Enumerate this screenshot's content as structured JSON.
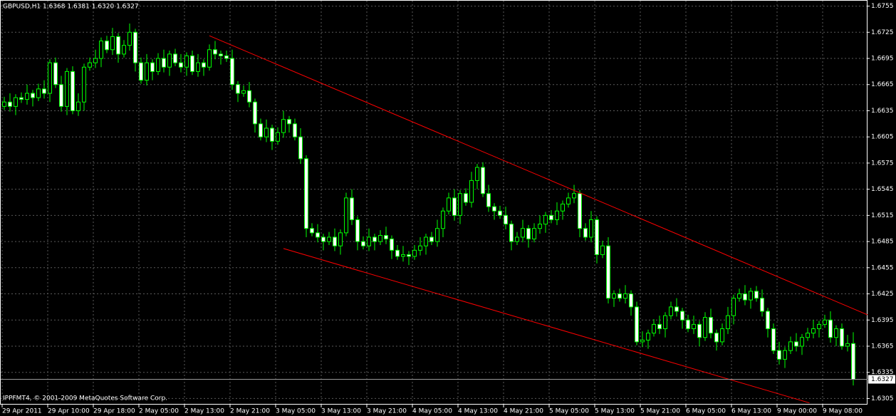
{
  "chart_data": {
    "type": "candlestick",
    "title": "GBPUSD,H1  1.6368 1.6381 1.6320 1.6327",
    "footer": "IPPFMT4, © 2001-2009 MetaQuotes Software Corp.",
    "line_color": "#00ff00",
    "up_color": "#000000",
    "down_color": "#ffffff",
    "grid": true,
    "categories": [
      "29 Apr 2011",
      null,
      null,
      null,
      null,
      null,
      null,
      null,
      "29 Apr 10:00",
      null,
      null,
      null,
      null,
      null,
      null,
      null,
      "29 Apr 18:00",
      null,
      null,
      null,
      null,
      null,
      null,
      null,
      "2 May 05:00",
      null,
      null,
      null,
      null,
      null,
      null,
      null,
      "2 May 13:00",
      null,
      null,
      null,
      null,
      null,
      null,
      null,
      "2 May 21:00",
      null,
      null,
      null,
      null,
      null,
      null,
      null,
      "3 May 05:00",
      null,
      null,
      null,
      null,
      null,
      null,
      null,
      "3 May 13:00",
      null,
      null,
      null,
      null,
      null,
      null,
      null,
      "3 May 21:00",
      null,
      null,
      null,
      null,
      null,
      null,
      null,
      "4 May 05:00",
      null,
      null,
      null,
      null,
      null,
      null,
      null,
      "4 May 13:00",
      null,
      null,
      null,
      null,
      null,
      null,
      null,
      "4 May 21:00",
      null,
      null,
      null,
      null,
      null,
      null,
      null,
      "5 May 05:00",
      null,
      null,
      null,
      null,
      null,
      null,
      null,
      "5 May 13:00",
      null,
      null,
      null,
      null,
      null,
      null,
      null,
      "5 May 21:00",
      null,
      null,
      null,
      null,
      null,
      null,
      null,
      "6 May 05:00",
      null,
      null,
      null,
      null,
      null,
      null,
      null,
      "6 May 13:00",
      null,
      null,
      null,
      null,
      null,
      null,
      null,
      "9 May 00:00",
      null,
      null,
      null,
      null,
      null,
      null,
      null,
      "9 May 08:00",
      null,
      null,
      null,
      null,
      null
    ],
    "open": [
      1.664,
      1.6645,
      1.664,
      1.665,
      1.6648,
      1.6655,
      1.665,
      1.666,
      1.6655,
      1.669,
      1.6665,
      1.664,
      1.668,
      1.6635,
      1.6645,
      1.6685,
      1.669,
      1.6695,
      1.6715,
      1.6705,
      1.672,
      1.67,
      1.671,
      1.6725,
      1.669,
      1.667,
      1.669,
      1.668,
      1.6695,
      1.6685,
      1.67,
      1.669,
      1.6685,
      1.6698,
      1.668,
      1.669,
      1.6685,
      1.6705,
      1.67,
      1.6698,
      1.6695,
      1.6665,
      1.6655,
      1.6658,
      1.6645,
      1.662,
      1.6605,
      1.6615,
      1.66,
      1.661,
      1.6625,
      1.662,
      1.6605,
      1.658,
      1.65,
      1.6495,
      1.649,
      1.6485,
      1.649,
      1.648,
      1.6495,
      1.6535,
      1.651,
      1.6485,
      1.648,
      1.649,
      1.6485,
      1.6492,
      1.6488,
      1.6475,
      1.6468,
      1.647,
      1.6468,
      1.6475,
      1.648,
      1.649,
      1.6485,
      1.65,
      1.652,
      1.6535,
      1.6515,
      1.654,
      1.653,
      1.6555,
      1.657,
      1.654,
      1.6525,
      1.652,
      1.6515,
      1.6505,
      1.6485,
      1.649,
      1.65,
      1.6488,
      1.65,
      1.6505,
      1.6515,
      1.651,
      1.652,
      1.6528,
      1.6535,
      1.654,
      1.65,
      1.649,
      1.651,
      1.647,
      1.648,
      1.642,
      1.6425,
      1.642,
      1.6425,
      1.641,
      1.637,
      1.6372,
      1.638,
      1.639,
      1.6385,
      1.64,
      1.641,
      1.6405,
      1.6395,
      1.6385,
      1.639,
      1.6375,
      1.6398,
      1.638,
      1.637,
      1.6385,
      1.64,
      1.642,
      1.6425,
      1.6418,
      1.6428,
      1.642,
      1.6405,
      1.6385,
      1.636,
      1.635,
      1.636,
      1.637,
      1.6365,
      1.6375,
      1.638,
      1.6385,
      1.639,
      1.6395,
      1.6375,
      1.6385,
      1.6365,
      1.6368
    ],
    "high": [
      1.6651,
      1.6655,
      1.6654,
      1.6656,
      1.6665,
      1.6659,
      1.6666,
      1.667,
      1.6694,
      1.6696,
      1.6675,
      1.6684,
      1.6686,
      1.6655,
      1.6689,
      1.6696,
      1.6705,
      1.6719,
      1.6721,
      1.673,
      1.6724,
      1.6716,
      1.6735,
      1.6729,
      1.6696,
      1.67,
      1.6694,
      1.6701,
      1.6705,
      1.6704,
      1.6706,
      1.67,
      1.6702,
      1.6704,
      1.67,
      1.6694,
      1.6711,
      1.6715,
      1.6704,
      1.6704,
      1.6705,
      1.6669,
      1.6664,
      1.6668,
      1.6649,
      1.6626,
      1.6625,
      1.6619,
      1.6616,
      1.6635,
      1.6629,
      1.6626,
      1.6615,
      1.6584,
      1.6506,
      1.6505,
      1.6494,
      1.6496,
      1.65,
      1.6499,
      1.6541,
      1.6545,
      1.6514,
      1.6491,
      1.65,
      1.6494,
      1.6498,
      1.6502,
      1.6492,
      1.6481,
      1.648,
      1.6474,
      1.6481,
      1.649,
      1.6494,
      1.6496,
      1.651,
      1.6524,
      1.6541,
      1.6545,
      1.6544,
      1.6546,
      1.6565,
      1.6574,
      1.6576,
      1.655,
      1.6529,
      1.6526,
      1.6525,
      1.6509,
      1.6496,
      1.651,
      1.6504,
      1.6506,
      1.6515,
      1.6519,
      1.6521,
      1.653,
      1.6532,
      1.6541,
      1.655,
      1.6544,
      1.6506,
      1.652,
      1.6514,
      1.6486,
      1.649,
      1.6429,
      1.6431,
      1.6435,
      1.6429,
      1.6416,
      1.6382,
      1.6384,
      1.6396,
      1.64,
      1.6404,
      1.6416,
      1.642,
      1.6409,
      1.6401,
      1.64,
      1.6394,
      1.6404,
      1.6408,
      1.6384,
      1.6391,
      1.641,
      1.6424,
      1.6431,
      1.6435,
      1.6432,
      1.6434,
      1.643,
      1.6409,
      1.6391,
      1.637,
      1.6364,
      1.6376,
      1.638,
      1.6379,
      1.6386,
      1.6395,
      1.6394,
      1.6401,
      1.6405,
      1.6389,
      1.6391,
      1.6378,
      1.6381
    ],
    "low": [
      1.6636,
      1.6634,
      1.663,
      1.6644,
      1.6642,
      1.664,
      1.6646,
      1.6649,
      1.6645,
      1.6661,
      1.6634,
      1.663,
      1.6631,
      1.6629,
      1.6635,
      1.6681,
      1.6684,
      1.6685,
      1.6701,
      1.6699,
      1.669,
      1.6696,
      1.6704,
      1.668,
      1.6666,
      1.6664,
      1.667,
      1.6676,
      1.6679,
      1.6675,
      1.6686,
      1.6679,
      1.6675,
      1.6676,
      1.6674,
      1.6675,
      1.6681,
      1.6694,
      1.6688,
      1.6691,
      1.6659,
      1.6645,
      1.6651,
      1.6639,
      1.661,
      1.6601,
      1.6599,
      1.659,
      1.6596,
      1.6604,
      1.661,
      1.6601,
      1.6574,
      1.649,
      1.6491,
      1.6484,
      1.6475,
      1.6481,
      1.6474,
      1.647,
      1.6491,
      1.6504,
      1.6475,
      1.6476,
      1.6474,
      1.6475,
      1.6481,
      1.6482,
      1.6465,
      1.6464,
      1.6462,
      1.6458,
      1.6464,
      1.6469,
      1.647,
      1.6481,
      1.6479,
      1.649,
      1.6516,
      1.6509,
      1.6505,
      1.6526,
      1.6524,
      1.6545,
      1.6536,
      1.6519,
      1.651,
      1.6511,
      1.6499,
      1.6475,
      1.6481,
      1.6484,
      1.6478,
      1.6484,
      1.6494,
      1.6495,
      1.6506,
      1.6504,
      1.651,
      1.6524,
      1.6529,
      1.649,
      1.6486,
      1.6484,
      1.646,
      1.6466,
      1.6414,
      1.641,
      1.6416,
      1.6414,
      1.64,
      1.6366,
      1.6364,
      1.6362,
      1.6376,
      1.6379,
      1.6375,
      1.6396,
      1.6399,
      1.6385,
      1.6381,
      1.6379,
      1.6365,
      1.6371,
      1.6374,
      1.636,
      1.6366,
      1.6379,
      1.639,
      1.6416,
      1.6412,
      1.6408,
      1.6416,
      1.6399,
      1.6375,
      1.6356,
      1.6344,
      1.634,
      1.6356,
      1.6359,
      1.6355,
      1.6371,
      1.6374,
      1.6375,
      1.6386,
      1.6369,
      1.6365,
      1.6361,
      1.6359,
      1.632
    ],
    "close": [
      1.6645,
      1.664,
      1.665,
      1.6648,
      1.6655,
      1.665,
      1.666,
      1.6655,
      1.669,
      1.6665,
      1.664,
      1.668,
      1.6635,
      1.6645,
      1.6685,
      1.669,
      1.6695,
      1.6715,
      1.6705,
      1.672,
      1.67,
      1.671,
      1.6725,
      1.669,
      1.667,
      1.669,
      1.668,
      1.6695,
      1.6685,
      1.67,
      1.669,
      1.6685,
      1.6698,
      1.668,
      1.669,
      1.6685,
      1.6705,
      1.67,
      1.6698,
      1.6695,
      1.6665,
      1.6655,
      1.6658,
      1.6645,
      1.662,
      1.6605,
      1.6615,
      1.66,
      1.661,
      1.6625,
      1.662,
      1.6605,
      1.658,
      1.65,
      1.6495,
      1.649,
      1.6485,
      1.649,
      1.648,
      1.6495,
      1.6535,
      1.651,
      1.6485,
      1.648,
      1.649,
      1.6485,
      1.6492,
      1.6488,
      1.6475,
      1.6468,
      1.647,
      1.6468,
      1.6475,
      1.648,
      1.649,
      1.6485,
      1.65,
      1.652,
      1.6535,
      1.6515,
      1.654,
      1.653,
      1.6555,
      1.657,
      1.654,
      1.6525,
      1.652,
      1.6515,
      1.6505,
      1.6485,
      1.649,
      1.65,
      1.6488,
      1.65,
      1.6505,
      1.6515,
      1.651,
      1.652,
      1.6528,
      1.6535,
      1.654,
      1.65,
      1.649,
      1.651,
      1.647,
      1.648,
      1.642,
      1.6425,
      1.642,
      1.6425,
      1.641,
      1.637,
      1.6372,
      1.638,
      1.639,
      1.6385,
      1.64,
      1.641,
      1.6405,
      1.6395,
      1.6385,
      1.639,
      1.6375,
      1.6398,
      1.638,
      1.637,
      1.6385,
      1.64,
      1.642,
      1.6425,
      1.6418,
      1.6428,
      1.642,
      1.6405,
      1.6385,
      1.636,
      1.635,
      1.636,
      1.637,
      1.6365,
      1.6375,
      1.638,
      1.6385,
      1.639,
      1.6395,
      1.6375,
      1.6385,
      1.6365,
      1.6368,
      1.6327
    ],
    "current_price": 1.6327,
    "trendlines": [
      {
        "color": "#ff0000",
        "x": [
          36,
          151.6
        ],
        "y": [
          1.6721,
          1.6401
        ]
      },
      {
        "color": "#ff0000",
        "x": [
          49,
          141.3
        ],
        "y": [
          1.6477,
          1.63
        ]
      }
    ],
    "ylim": [
      1.6298,
      1.6762
    ],
    "yticks": [
      1.6755,
      1.6725,
      1.6695,
      1.6665,
      1.6635,
      1.6605,
      1.6575,
      1.6545,
      1.6515,
      1.6485,
      1.6455,
      1.6425,
      1.6395,
      1.6365,
      1.6335,
      1.6305
    ]
  }
}
